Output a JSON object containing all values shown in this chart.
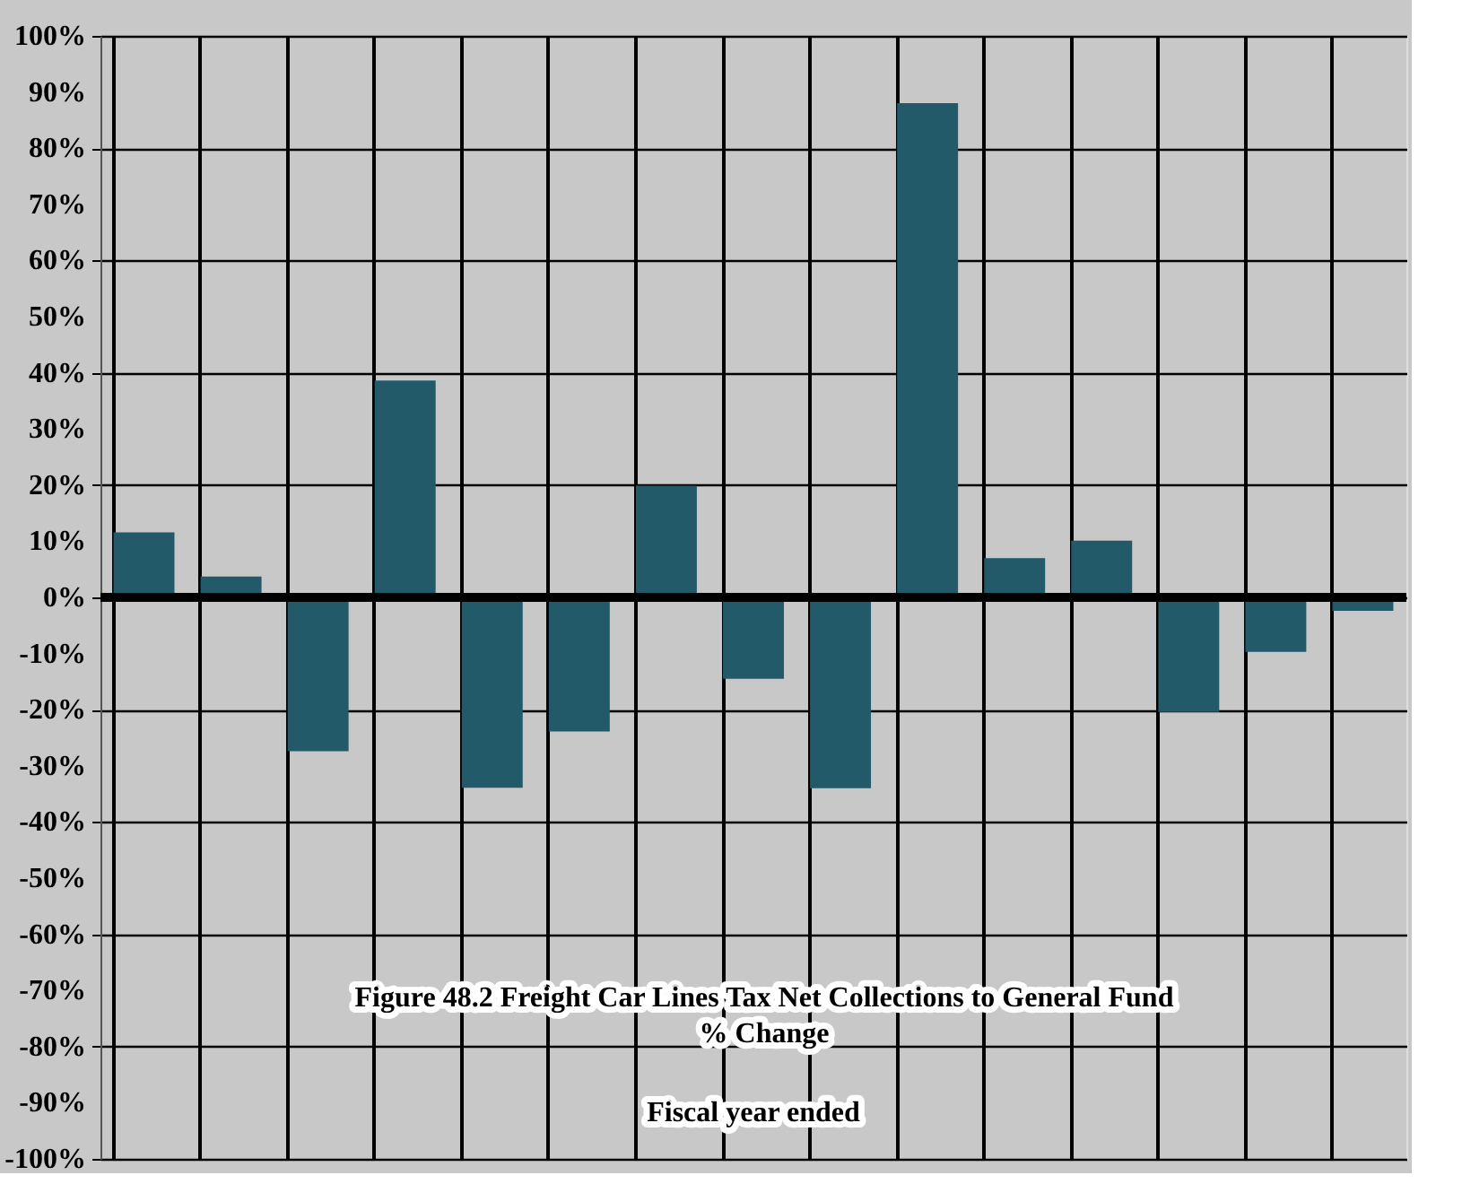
{
  "chart_data": {
    "type": "bar",
    "title": "Figure 48.2  Freight Car Lines Tax Net Collections to General Fund\n% Change",
    "xlabel": "Fiscal year ended",
    "categories": [
      null,
      null,
      null,
      null,
      null,
      null,
      null,
      null,
      null,
      null,
      null,
      null,
      null,
      null,
      null
    ],
    "values": [
      11.6,
      3.7,
      -27.4,
      38.6,
      -33.9,
      -23.9,
      19.9,
      -14.5,
      -34,
      88,
      7,
      10.1,
      -20.4,
      -9.7,
      -2.4
    ],
    "color": "#225a6a",
    "ylim": [
      -100,
      100
    ],
    "yticks": [
      {
        "value": -100,
        "label": "-100%"
      },
      {
        "value": -90,
        "label": "-90%"
      },
      {
        "value": -80,
        "label": "-80%"
      },
      {
        "value": -70,
        "label": "-70%"
      },
      {
        "value": -60,
        "label": "-60%"
      },
      {
        "value": -50,
        "label": "-50%"
      },
      {
        "value": -40,
        "label": "-40%"
      },
      {
        "value": -30,
        "label": "-30%"
      },
      {
        "value": -20,
        "label": "-20%"
      },
      {
        "value": -10,
        "label": "-10%"
      },
      {
        "value": 0,
        "label": "0%"
      },
      {
        "value": 10,
        "label": "10%"
      },
      {
        "value": 20,
        "label": "20%"
      },
      {
        "value": 30,
        "label": "30%"
      },
      {
        "value": 40,
        "label": "40%"
      },
      {
        "value": 50,
        "label": "50%"
      },
      {
        "value": 60,
        "label": "60%"
      },
      {
        "value": 70,
        "label": "70%"
      },
      {
        "value": 80,
        "label": "80%"
      },
      {
        "value": 90,
        "label": "90%"
      },
      {
        "value": 100,
        "label": "100%"
      }
    ],
    "ref_lines": [
      {
        "axis": "y",
        "value": 0
      }
    ],
    "grid": true,
    "tick_labels": "y"
  }
}
